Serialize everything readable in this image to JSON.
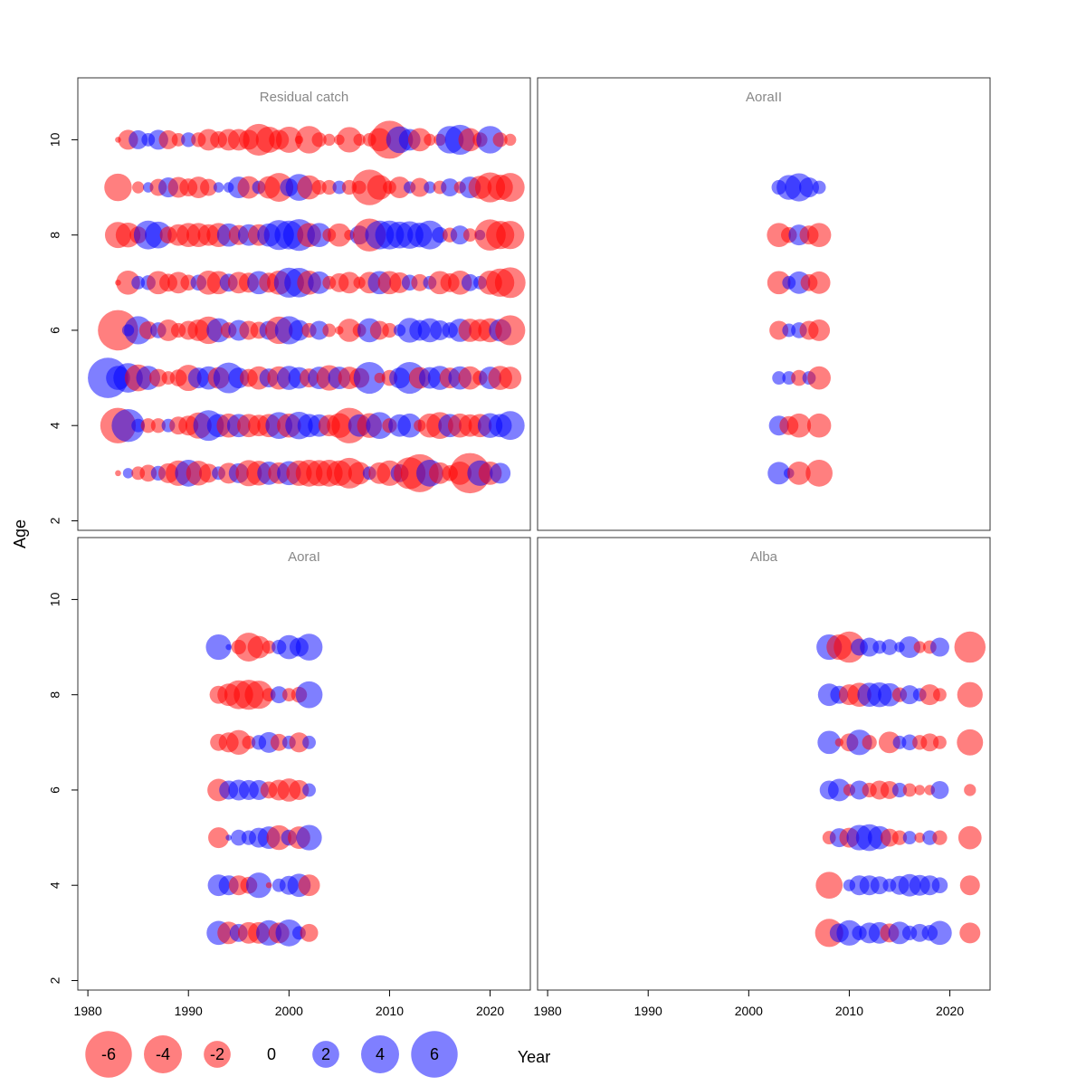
{
  "chart_data": {
    "type": "scatter",
    "xlabel": "Year",
    "ylabel": "Age",
    "xlim": [
      1979,
      2024
    ],
    "ylim": [
      1.8,
      11.3
    ],
    "x_ticks": [
      "1980",
      "1990",
      "2000",
      "2010",
      "2020"
    ],
    "y_ticks": [
      "2",
      "4",
      "6",
      "8",
      "10"
    ],
    "colors": {
      "negative": "#ff0000",
      "positive": "#0000ff"
    },
    "legend": {
      "values": [
        -6,
        -4,
        -2,
        0,
        2,
        4,
        6
      ],
      "labels": [
        "-6",
        "-4",
        "-2",
        "0",
        "2",
        "4",
        "6"
      ]
    },
    "panels": [
      {
        "name": "Residual catch",
        "ages": [
          3,
          4,
          5,
          6,
          7,
          8,
          9,
          10
        ],
        "years": [
          1982,
          1983,
          1984,
          1985,
          1986,
          1987,
          1988,
          1989,
          1990,
          1991,
          1992,
          1993,
          1994,
          1995,
          1996,
          1997,
          1998,
          1999,
          2000,
          2001,
          2002,
          2003,
          2004,
          2005,
          2006,
          2007,
          2008,
          2009,
          2010,
          2011,
          2012,
          2013,
          2014,
          2015,
          2016,
          2017,
          2018,
          2019,
          2020,
          2021,
          2022
        ],
        "residuals": [
          [
            null,
            -0.1,
            0.3,
            -0.5,
            -0.8,
            0.6,
            -1.1,
            -1.8,
            2.0,
            -1.7,
            -1.0,
            0.5,
            -1.2,
            1.1,
            -1.9,
            -1.7,
            1.5,
            -1.3,
            1.6,
            -1.8,
            -2.0,
            -1.9,
            -2.0,
            -1.8,
            -2.6,
            -1.4,
            0.5,
            -1.3,
            -1.8,
            0.9,
            -2.8,
            -4.0,
            2.0,
            -1.3,
            -0.7,
            -1.5,
            -4.5,
            1.8,
            -1.5,
            1.2,
            null
          ],
          [
            null,
            -3.5,
            3.0,
            0.5,
            -0.6,
            -0.6,
            0.5,
            -0.9,
            -1.1,
            -1.9,
            2.6,
            1.5,
            -1.6,
            1.5,
            -1.5,
            -1.3,
            -1.5,
            2.0,
            -1.6,
            2.1,
            1.5,
            1.4,
            -1.3,
            -1.7,
            -3.5,
            1.4,
            -1.7,
            2.0,
            -0.6,
            1.4,
            1.6,
            -0.4,
            -1.6,
            -2.0,
            1.5,
            -1.6,
            -1.4,
            -1.5,
            1.7,
            1.5,
            2.3
          ],
          [
            4.5,
            1.6,
            2.4,
            -2.0,
            1.6,
            -0.9,
            -0.5,
            -0.8,
            -1.9,
            1.2,
            1.5,
            -1.3,
            2.6,
            1.2,
            -0.9,
            -1.5,
            1.0,
            -1.5,
            1.6,
            1.3,
            -1.0,
            1.4,
            -1.8,
            1.4,
            -1.4,
            -1.1,
            2.8,
            -0.3,
            -0.7,
            1.2,
            2.8,
            -1.3,
            1.3,
            1.6,
            -1.2,
            1.5,
            -1.5,
            -0.6,
            1.4,
            -1.6,
            -1.4
          ],
          [
            null,
            -4.5,
            0.4,
            2.2,
            -0.9,
            0.7,
            -1.3,
            -0.6,
            -1.0,
            -1.3,
            -2.1,
            1.6,
            -0.7,
            1.2,
            -1.0,
            -0.8,
            1.0,
            -2.1,
            2.2,
            1.2,
            -0.6,
            1.0,
            -0.5,
            -0.2,
            -1.5,
            -0.5,
            1.6,
            -1.0,
            -0.6,
            0.4,
            1.7,
            1.2,
            1.6,
            1.1,
            0.7,
            1.5,
            -1.5,
            -1.4,
            -1.6,
            1.4,
            -2.5
          ],
          [
            null,
            -0.1,
            -1.6,
            0.5,
            0.6,
            -1.5,
            -0.9,
            -1.3,
            -0.7,
            0.7,
            -1.6,
            -1.5,
            0.9,
            -1.3,
            -1.1,
            1.5,
            -1.1,
            -1.6,
            2.5,
            2.4,
            -1.6,
            1.4,
            -0.5,
            -1.0,
            -1.3,
            -0.4,
            -1.3,
            1.5,
            -1.5,
            -1.2,
            0.7,
            -0.8,
            0.5,
            -1.5,
            -1.0,
            -1.6,
            0.8,
            0.5,
            -1.6,
            -2.2,
            -2.6
          ],
          [
            null,
            -1.9,
            -1.7,
            -0.8,
            2.3,
            2.0,
            -0.8,
            -1.3,
            -1.6,
            -1.6,
            -1.3,
            -1.6,
            1.5,
            -1.1,
            1.3,
            -1.3,
            1.5,
            2.5,
            2.3,
            2.8,
            -1.6,
            1.6,
            -0.5,
            -1.5,
            -0.3,
            1.0,
            -3.0,
            2.3,
            2.3,
            2.0,
            2.1,
            1.7,
            2.3,
            0.7,
            -0.6,
            1.0,
            -0.5,
            0.3,
            -2.7,
            -2.2,
            -2.2
          ],
          [
            null,
            -2.1,
            null,
            -0.4,
            0.3,
            -0.8,
            1.1,
            -1.2,
            -0.9,
            -1.3,
            -0.8,
            0.3,
            0.3,
            1.3,
            -1.4,
            0.5,
            -1.4,
            -2.3,
            0.9,
            2.0,
            -1.6,
            -0.6,
            -0.6,
            0.5,
            -0.6,
            -0.5,
            -3.5,
            -1.7,
            -0.5,
            -1.3,
            0.4,
            -1.0,
            0.4,
            -0.5,
            0.9,
            -0.4,
            1.3,
            -1.5,
            -2.5,
            -1.8,
            -2.3
          ],
          [
            null,
            -0.1,
            -1.1,
            1.0,
            0.5,
            1.1,
            -1.0,
            -0.5,
            0.6,
            -0.6,
            -1.3,
            -0.8,
            -1.3,
            -1.3,
            -1.1,
            -2.8,
            -1.9,
            -1.1,
            -1.9,
            -0.2,
            -2.1,
            -0.6,
            -0.4,
            -0.3,
            -1.8,
            -0.4,
            -0.5,
            -1.5,
            -4.0,
            2.0,
            1.3,
            -1.5,
            -0.4,
            -0.4,
            2.1,
            2.5,
            -1.5,
            -0.6,
            2.1,
            -0.6,
            -0.4
          ]
        ]
      },
      {
        "name": "AoraII",
        "ages": [
          3,
          4,
          5,
          6,
          7,
          8,
          9
        ],
        "years": [
          2003,
          2004,
          2005,
          2006,
          2007
        ],
        "residuals": [
          [
            1.4,
            0.3,
            -1.5,
            null,
            -2.0
          ],
          [
            1.1,
            -1.0,
            -1.6,
            null,
            -1.6
          ],
          [
            0.5,
            0.5,
            -0.7,
            0.5,
            -1.5
          ],
          [
            -1.0,
            0.5,
            0.7,
            -1.0,
            -1.3
          ],
          [
            -1.5,
            0.5,
            1.4,
            -0.8,
            -1.4
          ],
          [
            -1.6,
            -0.7,
            1.2,
            -1.0,
            -1.6
          ],
          [
            0.6,
            1.7,
            2.2,
            1.1,
            0.5
          ]
        ]
      },
      {
        "name": "AoraI",
        "ages": [
          3,
          4,
          5,
          6,
          7,
          8,
          9
        ],
        "years": [
          1993,
          1994,
          1995,
          1996,
          1997,
          1998,
          1999,
          2000,
          2001,
          2002
        ],
        "residuals": [
          [
            1.6,
            -1.4,
            0.9,
            -1.3,
            -1.3,
            1.8,
            -1.2,
            2.0,
            0.5,
            -0.9
          ],
          [
            1.3,
            1.1,
            -1.1,
            -0.8,
            1.8,
            -0.1,
            0.5,
            1.0,
            1.5,
            -1.3
          ],
          [
            -1.2,
            0.1,
            0.7,
            0.6,
            1.1,
            1.4,
            -1.7,
            0.7,
            -1.4,
            1.8
          ],
          [
            -1.4,
            1.0,
            1.2,
            1.1,
            1.1,
            -0.8,
            -1.2,
            -1.5,
            -1.1,
            0.5
          ],
          [
            -0.8,
            -1.1,
            -1.7,
            -0.5,
            0.6,
            1.2,
            -0.8,
            0.5,
            -1.1,
            0.5
          ],
          [
            -0.9,
            -1.4,
            -2.3,
            -2.5,
            -2.2,
            -0.5,
            0.8,
            -0.5,
            -0.7,
            2.0
          ],
          [
            1.8,
            0.1,
            -0.6,
            -2.3,
            -1.4,
            -0.5,
            0.6,
            1.6,
            1.0,
            2.0
          ]
        ]
      },
      {
        "name": "Alba",
        "ages": [
          3,
          4,
          5,
          6,
          7,
          8,
          9
        ],
        "years": [
          2008,
          2009,
          2010,
          2011,
          2012,
          2013,
          2014,
          2015,
          2016,
          2017,
          2018,
          2019,
          2020,
          2021,
          2022
        ],
        "residuals": [
          [
            -2.2,
            1.0,
            1.8,
            0.6,
            1.2,
            1.3,
            -1.0,
            1.4,
            0.6,
            0.9,
            0.7,
            1.6,
            null,
            null,
            -1.2
          ],
          [
            -2.0,
            null,
            0.4,
            1.1,
            1.1,
            0.9,
            0.5,
            1.0,
            1.4,
            1.2,
            1.1,
            0.7,
            null,
            null,
            -1.1
          ],
          [
            -0.5,
            1.0,
            -1.1,
            1.8,
            2.0,
            1.5,
            -0.9,
            -0.6,
            0.5,
            -0.3,
            0.6,
            -0.6,
            null,
            null,
            -1.5
          ],
          [
            1.0,
            1.4,
            -0.4,
            1.0,
            -0.6,
            -1.0,
            -0.9,
            0.6,
            -0.5,
            -0.3,
            -0.3,
            0.9,
            null,
            null,
            -0.4
          ],
          [
            1.5,
            -0.2,
            -0.9,
            1.8,
            -0.6,
            null,
            -1.3,
            0.5,
            0.7,
            -0.6,
            -0.9,
            -0.5,
            null,
            null,
            -1.9
          ],
          [
            1.4,
            0.9,
            -1.2,
            -1.6,
            1.6,
            1.7,
            1.5,
            -0.6,
            1.0,
            0.5,
            -1.2,
            -0.5,
            null,
            null,
            -1.8
          ],
          [
            1.8,
            -1.8,
            -2.7,
            0.8,
            1.0,
            0.5,
            0.7,
            0.3,
            1.3,
            -0.4,
            -0.5,
            1.0,
            null,
            null,
            -2.7
          ]
        ]
      }
    ]
  }
}
